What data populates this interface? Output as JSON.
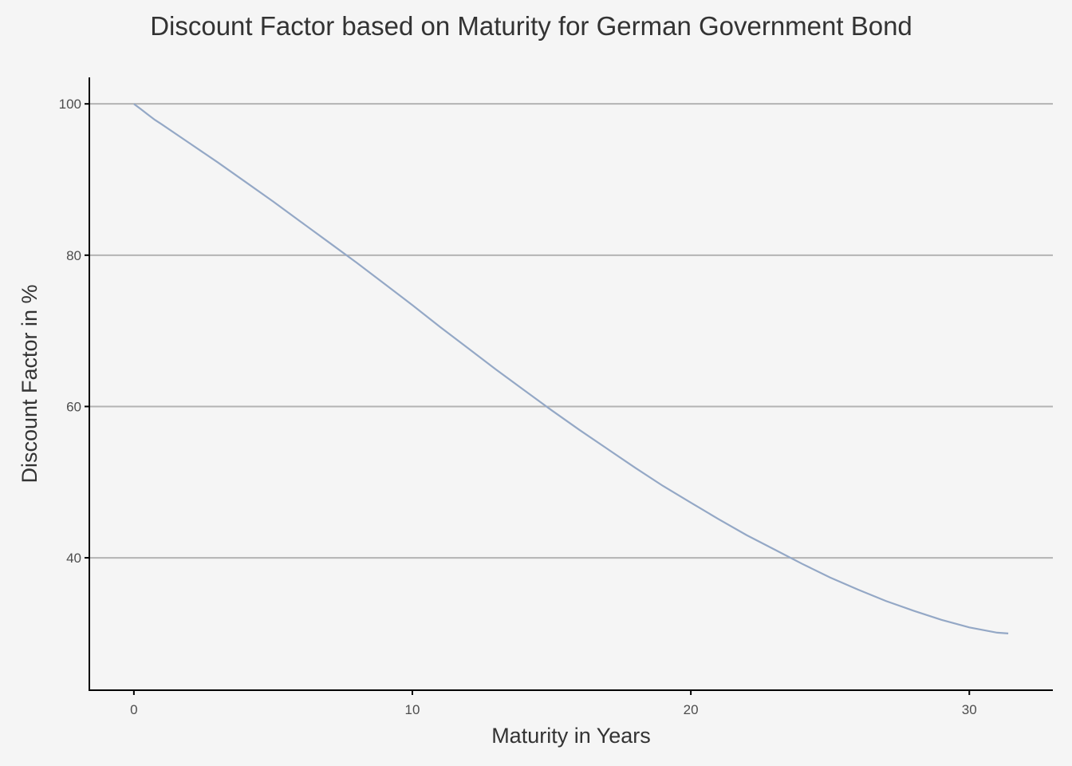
{
  "chart_data": {
    "type": "line",
    "title": "Discount Factor based on Maturity for German Government Bond",
    "xlabel": "Maturity in Years",
    "ylabel": "Discount Factor in %",
    "xlim": [
      -1.6,
      33
    ],
    "ylim": [
      22.5,
      103.5
    ],
    "xticks": [
      0,
      10,
      20,
      30
    ],
    "yticks": [
      40,
      60,
      80,
      100
    ],
    "grid": "horizontal-major",
    "line_color": "#94a8c6",
    "series": [
      {
        "x": [
          0,
          0.25,
          0.5,
          0.75,
          1,
          2,
          3,
          4,
          5,
          6,
          7,
          8,
          9,
          10,
          11,
          12,
          13,
          14,
          15,
          16,
          17,
          18,
          19,
          20,
          21,
          22,
          23,
          24,
          25,
          26,
          27,
          28,
          29,
          30,
          31,
          31.4
        ],
        "values": [
          100,
          99.3,
          98.6,
          97.9,
          97.3,
          94.8,
          92.3,
          89.7,
          87.1,
          84.4,
          81.7,
          79.0,
          76.2,
          73.4,
          70.5,
          67.7,
          64.9,
          62.2,
          59.5,
          56.9,
          54.4,
          51.9,
          49.5,
          47.3,
          45.1,
          43.0,
          41.1,
          39.2,
          37.4,
          35.8,
          34.3,
          33.0,
          31.8,
          30.8,
          30.1,
          30.0
        ]
      }
    ]
  }
}
